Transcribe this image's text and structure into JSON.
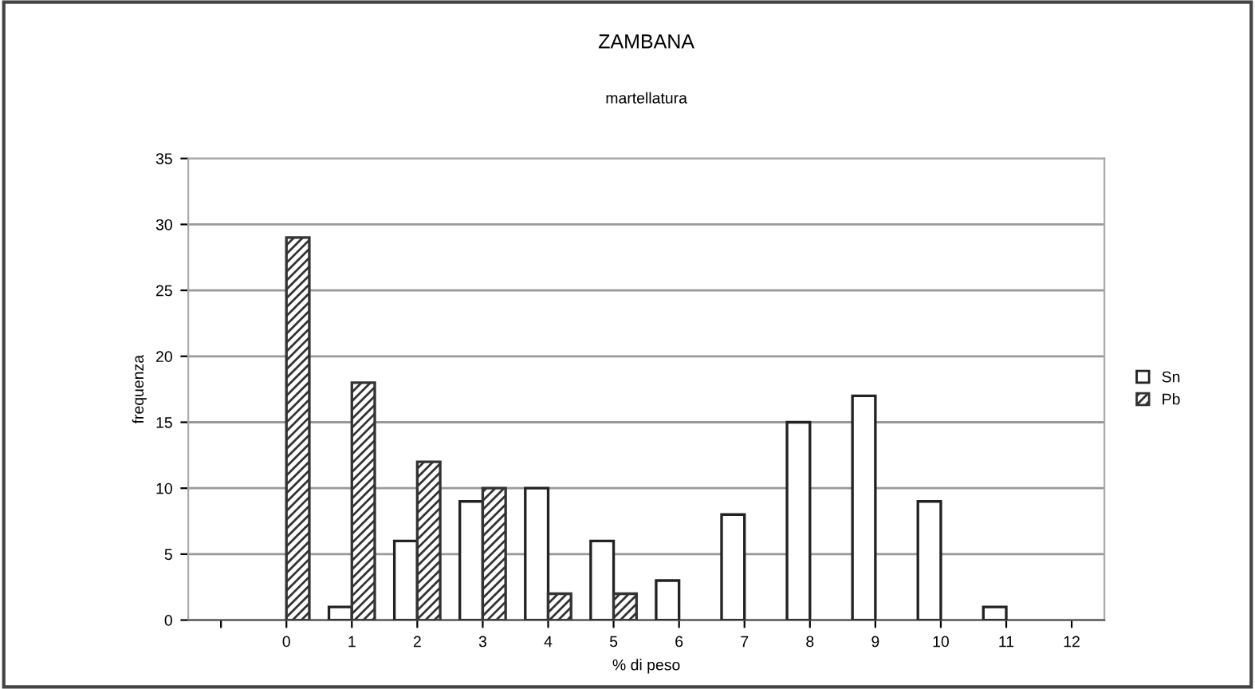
{
  "chart_data": {
    "type": "bar",
    "title": "ZAMBANA",
    "subtitle": "martellatura",
    "xlabel": "% di peso",
    "ylabel": "frequenza",
    "categories": [
      null,
      "0",
      "1",
      "2",
      "3",
      "4",
      "5",
      "6",
      "7",
      "8",
      "9",
      "10",
      "11",
      "12"
    ],
    "series": [
      {
        "name": "Sn",
        "color": "#ffffff",
        "values": [
          0,
          0,
          1,
          6,
          9,
          10,
          6,
          3,
          8,
          15,
          17,
          9,
          1,
          0
        ]
      },
      {
        "name": "Pb",
        "color": "#333333",
        "values": [
          0,
          29,
          18,
          12,
          10,
          2,
          2,
          0,
          0,
          0,
          0,
          0,
          0,
          0
        ]
      }
    ],
    "ylim": [
      0,
      35
    ],
    "yticks": [
      0,
      5,
      10,
      15,
      20,
      25,
      30,
      35
    ],
    "grid": "y",
    "legend": "right"
  }
}
